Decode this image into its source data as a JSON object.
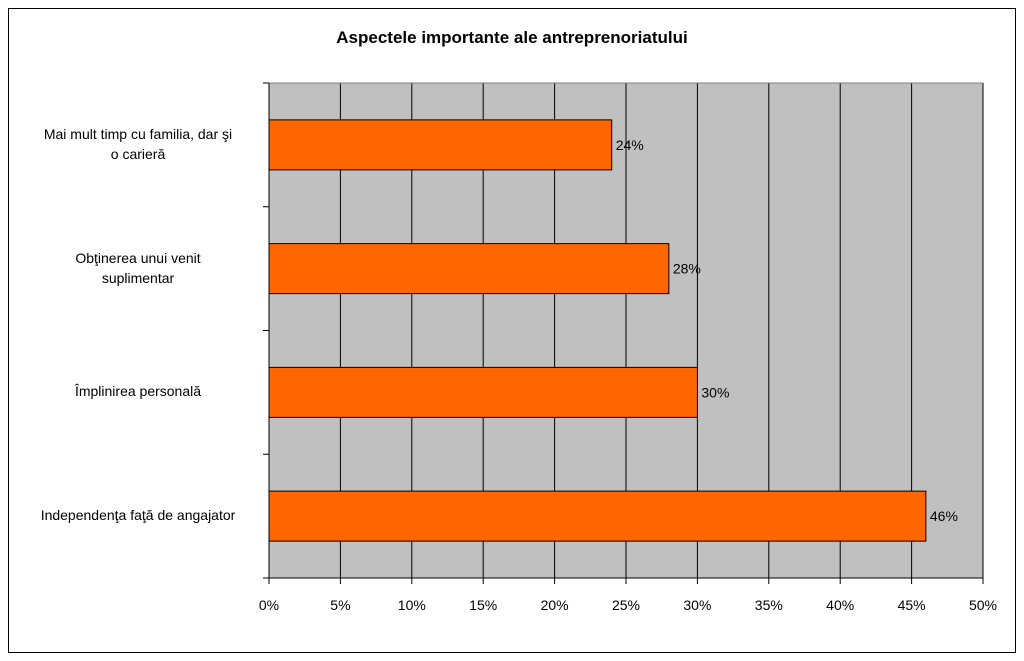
{
  "chart_data": {
    "type": "bar",
    "orientation": "horizontal",
    "title": "Aspectele importante ale antreprenoriatului",
    "categories": [
      [
        "Mai mult timp cu familia, dar şi",
        "o carieră"
      ],
      [
        "Obţinerea unui venit",
        "suplimentar"
      ],
      [
        "Împlinirea personală"
      ],
      [
        "Independenţa faţă de angajator"
      ]
    ],
    "values": [
      24,
      28,
      30,
      46
    ],
    "data_labels": [
      "24%",
      "28%",
      "30%",
      "46%"
    ],
    "x_ticks": [
      "0%",
      "5%",
      "10%",
      "15%",
      "20%",
      "25%",
      "30%",
      "35%",
      "40%",
      "45%",
      "50%"
    ],
    "xlim": [
      0,
      50
    ],
    "grid": true,
    "colors": {
      "bar": "#ff6600",
      "plot_bg": "#c0c0c0",
      "grid": "#000000"
    }
  }
}
